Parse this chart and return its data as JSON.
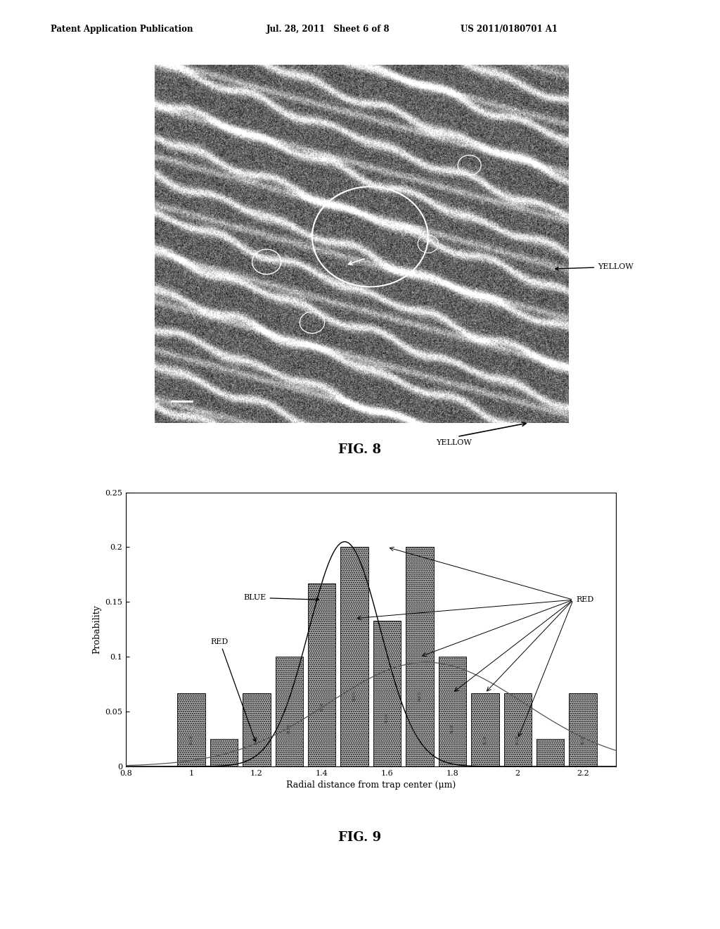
{
  "header_left": "Patent Application Publication",
  "header_mid": "Jul. 28, 2011   Sheet 6 of 8",
  "header_right": "US 2011/0180701 A1",
  "fig8_label": "FIG. 8",
  "fig9_label": "FIG. 9",
  "bar_centers": [
    1.0,
    1.1,
    1.2,
    1.3,
    1.4,
    1.5,
    1.6,
    1.7,
    1.8,
    1.9,
    2.0,
    2.1,
    2.2
  ],
  "bar_heights": [
    0.067,
    0.025,
    0.067,
    0.1,
    0.167,
    0.2,
    0.133,
    0.2,
    0.1,
    0.067,
    0.067,
    0.025,
    0.067
  ],
  "bar_width": 0.085,
  "blue_mu": 1.47,
  "blue_sigma": 0.11,
  "blue_scale": 0.205,
  "red_mu": 1.72,
  "red_sigma": 0.3,
  "red_scale": 0.095,
  "xlabel": "Radial distance from trap center (μm)",
  "ylabel": "Probability",
  "xlim": [
    0.8,
    2.3
  ],
  "ylim": [
    0.0,
    0.25
  ],
  "xticks": [
    0.8,
    1.0,
    1.2,
    1.4,
    1.6,
    1.8,
    2.0,
    2.2
  ],
  "yticks": [
    0.0,
    0.05,
    0.1,
    0.15,
    0.2,
    0.25
  ],
  "bar_color": "#999999",
  "blue_label": "BLUE",
  "red_label_left": "RED",
  "red_label_right": "RED",
  "background_color": "#ffffff",
  "yellow_label": "YELLOW"
}
